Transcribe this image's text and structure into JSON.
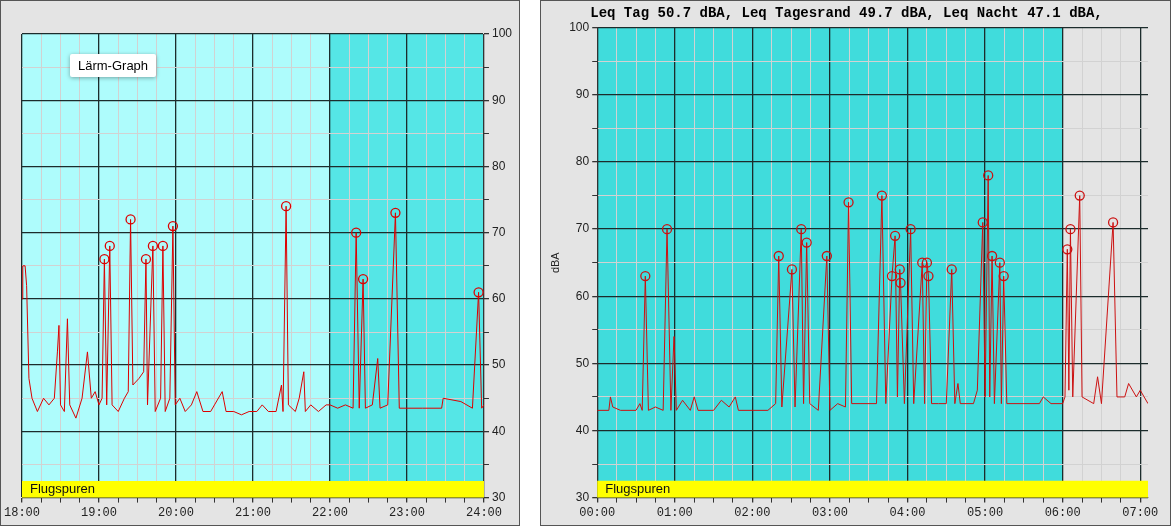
{
  "chart_data": [
    {
      "type": "line",
      "annotations": [
        "Lärm-Graph"
      ],
      "grid": true,
      "legend": false,
      "xlim": [
        18,
        24
      ],
      "xticks": [
        {
          "value": 18,
          "label": "18:00"
        },
        {
          "value": 18.25,
          "label": null
        },
        {
          "value": 18.5,
          "label": null
        },
        {
          "value": 18.75,
          "label": null
        },
        {
          "value": 19,
          "label": "19:00"
        },
        {
          "value": 19.25,
          "label": null
        },
        {
          "value": 19.5,
          "label": null
        },
        {
          "value": 19.75,
          "label": null
        },
        {
          "value": 20,
          "label": "20:00"
        },
        {
          "value": 20.25,
          "label": null
        },
        {
          "value": 20.5,
          "label": null
        },
        {
          "value": 20.75,
          "label": null
        },
        {
          "value": 21,
          "label": "21:00"
        },
        {
          "value": 21.25,
          "label": null
        },
        {
          "value": 21.5,
          "label": null
        },
        {
          "value": 21.75,
          "label": null
        },
        {
          "value": 22,
          "label": "22:00"
        },
        {
          "value": 22.25,
          "label": null
        },
        {
          "value": 22.5,
          "label": null
        },
        {
          "value": 22.75,
          "label": null
        },
        {
          "value": 23,
          "label": "23:00"
        },
        {
          "value": 23.25,
          "label": null
        },
        {
          "value": 23.5,
          "label": null
        },
        {
          "value": 23.75,
          "label": null
        },
        {
          "value": 24,
          "label": "24:00"
        }
      ],
      "y2lim": [
        30,
        100
      ],
      "y2ticks": [
        30,
        {
          "value": 35,
          "label": null
        },
        40,
        {
          "value": 45,
          "label": null
        },
        50,
        {
          "value": 55,
          "label": null
        },
        60,
        {
          "value": 65,
          "label": null
        },
        70,
        {
          "value": 75,
          "label": null
        },
        80,
        {
          "value": 85,
          "label": null
        },
        90,
        {
          "value": 95,
          "label": null
        },
        100
      ],
      "bands": [
        {
          "axis": "x",
          "from": 18,
          "to": 22,
          "color": "#aefcfc"
        },
        {
          "axis": "x",
          "from": 22,
          "to": 24,
          "color": "#55e6e6"
        },
        {
          "axis": "y2",
          "from": 30,
          "to": 32.5,
          "label": "Flugspuren",
          "color": "#ffff00"
        }
      ],
      "series": [
        {
          "axis": "y2",
          "color": "#dd0000",
          "marker": "none",
          "x": [
            18.0,
            18.01,
            18.04,
            18.06,
            18.09,
            18.13,
            18.2,
            18.28,
            18.35,
            18.42,
            18.46,
            18.48,
            18.5,
            18.55,
            18.59,
            18.62,
            18.7,
            18.78,
            18.85,
            18.9,
            18.95,
            19.0,
            19.04,
            19.07,
            19.1,
            19.14,
            19.17,
            19.25,
            19.33,
            19.38,
            19.41,
            19.44,
            19.52,
            19.58,
            19.61,
            19.63,
            19.7,
            19.73,
            19.8,
            19.83,
            19.86,
            19.92,
            19.96,
            19.99,
            20.05,
            20.12,
            20.2,
            20.27,
            20.35,
            20.45,
            20.5,
            20.6,
            20.65,
            20.75,
            20.85,
            20.95,
            21.05,
            21.12,
            21.2,
            21.3,
            21.37,
            21.39,
            21.43,
            21.46,
            21.55,
            21.6,
            21.66,
            21.68,
            21.75,
            21.85,
            21.95,
            22.0,
            22.1,
            22.2,
            22.3,
            22.34,
            22.38,
            22.43,
            22.46,
            22.55,
            22.62,
            22.65,
            22.75,
            22.85,
            22.9,
            23.2,
            23.45,
            23.47,
            23.7,
            23.85,
            23.93,
            23.97,
            24.0
          ],
          "values": [
            60,
            65,
            65,
            62,
            48,
            45,
            43,
            45,
            44,
            45,
            52,
            56,
            44,
            43,
            57,
            44,
            42,
            45,
            52,
            45,
            46,
            44,
            45,
            66,
            44,
            68,
            44,
            43,
            45,
            46,
            72,
            47,
            48,
            49,
            66,
            44,
            68,
            43,
            45,
            68,
            43,
            45,
            71,
            44,
            45,
            43,
            44,
            46,
            43,
            43,
            44,
            46,
            43,
            43,
            42.5,
            43,
            43,
            44,
            43,
            43,
            47,
            43,
            74,
            44,
            43,
            45,
            49,
            43,
            44,
            43,
            44,
            44,
            43.5,
            44,
            43.5,
            70,
            43.5,
            63,
            43.5,
            44,
            51,
            43.5,
            44,
            73,
            43.5,
            43.5,
            43.5,
            45,
            44.5,
            43.5,
            61,
            43.5,
            44
          ]
        },
        {
          "type": "scatter",
          "axis": "y2",
          "color": "#dd0000",
          "marker": "circle",
          "x": [
            19.07,
            19.14,
            19.41,
            19.61,
            19.7,
            19.83,
            19.96,
            21.43,
            22.34,
            22.43,
            22.85,
            23.93
          ],
          "values": [
            66,
            68,
            72,
            66,
            68,
            68,
            71,
            74,
            70,
            63,
            73,
            61
          ]
        }
      ]
    },
    {
      "type": "line",
      "title": "Leq Tag 50.7 dBA, Leq Tagesrand 49.7 dBA, Leq Nacht 47.1 dBA,",
      "ylabel": "dBA",
      "grid": true,
      "legend": false,
      "xlim": [
        0,
        7.1
      ],
      "xticks": [
        {
          "value": 0,
          "label": "00:00"
        },
        {
          "value": 0.25,
          "label": null
        },
        {
          "value": 0.5,
          "label": null
        },
        {
          "value": 0.75,
          "label": null
        },
        {
          "value": 1,
          "label": "01:00"
        },
        {
          "value": 1.25,
          "label": null
        },
        {
          "value": 1.5,
          "label": null
        },
        {
          "value": 1.75,
          "label": null
        },
        {
          "value": 2,
          "label": "02:00"
        },
        {
          "value": 2.25,
          "label": null
        },
        {
          "value": 2.5,
          "label": null
        },
        {
          "value": 2.75,
          "label": null
        },
        {
          "value": 3,
          "label": "03:00"
        },
        {
          "value": 3.25,
          "label": null
        },
        {
          "value": 3.5,
          "label": null
        },
        {
          "value": 3.75,
          "label": null
        },
        {
          "value": 4,
          "label": "04:00"
        },
        {
          "value": 4.25,
          "label": null
        },
        {
          "value": 4.5,
          "label": null
        },
        {
          "value": 4.75,
          "label": null
        },
        {
          "value": 5,
          "label": "05:00"
        },
        {
          "value": 5.25,
          "label": null
        },
        {
          "value": 5.5,
          "label": null
        },
        {
          "value": 5.75,
          "label": null
        },
        {
          "value": 6,
          "label": "06:00"
        },
        {
          "value": 6.25,
          "label": null
        },
        {
          "value": 6.5,
          "label": null
        },
        {
          "value": 6.75,
          "label": null
        },
        {
          "value": 7,
          "label": "07:00"
        }
      ],
      "ylim": [
        30,
        100
      ],
      "yticks": [
        30,
        {
          "value": 35,
          "label": null
        },
        40,
        {
          "value": 45,
          "label": null
        },
        50,
        {
          "value": 55,
          "label": null
        },
        60,
        {
          "value": 65,
          "label": null
        },
        70,
        {
          "value": 75,
          "label": null
        },
        80,
        {
          "value": 85,
          "label": null
        },
        90,
        {
          "value": 95,
          "label": null
        },
        100
      ],
      "bands": [
        {
          "axis": "x",
          "from": 0,
          "to": 6,
          "color": "#40dcdc"
        },
        {
          "axis": "y",
          "from": 30,
          "to": 32.5,
          "label": "Flugspuren",
          "color": "#ffff00"
        }
      ],
      "series": [
        {
          "color": "#cc1111",
          "marker": "none",
          "x": [
            0,
            0.15,
            0.17,
            0.2,
            0.3,
            0.5,
            0.55,
            0.58,
            0.62,
            0.66,
            0.75,
            0.85,
            0.9,
            0.95,
            0.99,
            1.02,
            1.1,
            1.2,
            1.25,
            1.3,
            1.5,
            1.6,
            1.7,
            1.78,
            1.82,
            2.0,
            2.2,
            2.3,
            2.34,
            2.38,
            2.51,
            2.55,
            2.63,
            2.66,
            2.7,
            2.74,
            2.85,
            2.96,
            3.0,
            3.1,
            3.2,
            3.24,
            3.28,
            3.4,
            3.6,
            3.67,
            3.72,
            3.8,
            3.84,
            3.87,
            3.9,
            3.91,
            3.96,
            4.04,
            4.08,
            4.19,
            4.22,
            4.25,
            4.27,
            4.31,
            4.4,
            4.5,
            4.57,
            4.61,
            4.65,
            4.68,
            4.85,
            4.9,
            4.97,
            5.0,
            5.04,
            5.06,
            5.09,
            5.12,
            5.19,
            5.21,
            5.24,
            5.28,
            5.5,
            5.7,
            5.75,
            5.85,
            6.0,
            6.03,
            6.06,
            6.08,
            6.1,
            6.13,
            6.22,
            6.25,
            6.4,
            6.45,
            6.5,
            6.65,
            6.7,
            6.8,
            6.85,
            6.95,
            7.0,
            7.05,
            7.1
          ],
          "values": [
            43,
            43,
            45,
            43.5,
            43,
            43,
            44,
            43,
            63,
            43,
            43.5,
            43,
            70,
            43,
            54,
            43,
            44.5,
            43,
            45,
            43,
            43,
            44.5,
            43.5,
            45,
            43,
            43,
            43,
            44,
            66,
            43.5,
            64,
            43.5,
            70,
            44,
            68,
            44,
            43,
            66,
            43,
            44,
            43.5,
            74,
            44,
            44,
            44,
            75,
            44,
            63,
            69,
            45,
            64,
            62,
            44,
            70,
            44,
            65,
            44,
            65,
            63,
            44,
            44,
            44,
            64,
            44,
            47,
            44,
            44,
            46,
            71,
            45,
            78,
            45,
            66,
            44,
            65,
            44,
            63,
            44,
            44,
            44,
            45,
            44,
            44,
            45,
            67,
            46,
            70,
            45,
            75,
            45,
            44,
            48,
            44,
            71,
            45,
            45,
            47,
            45,
            46,
            45,
            44
          ]
        },
        {
          "type": "scatter",
          "color": "#cc1111",
          "marker": "circle",
          "x": [
            0.62,
            0.9,
            2.34,
            2.51,
            2.63,
            2.7,
            2.96,
            3.24,
            3.67,
            3.8,
            3.84,
            3.9,
            3.91,
            4.04,
            4.19,
            4.25,
            4.27,
            4.57,
            4.97,
            5.04,
            5.09,
            5.19,
            5.24,
            6.06,
            6.1,
            6.22,
            6.65
          ],
          "values": [
            63,
            70,
            66,
            64,
            70,
            68,
            66,
            74,
            75,
            63,
            69,
            64,
            62,
            70,
            65,
            65,
            63,
            64,
            71,
            78,
            66,
            65,
            63,
            67,
            70,
            75,
            71
          ]
        }
      ]
    }
  ]
}
